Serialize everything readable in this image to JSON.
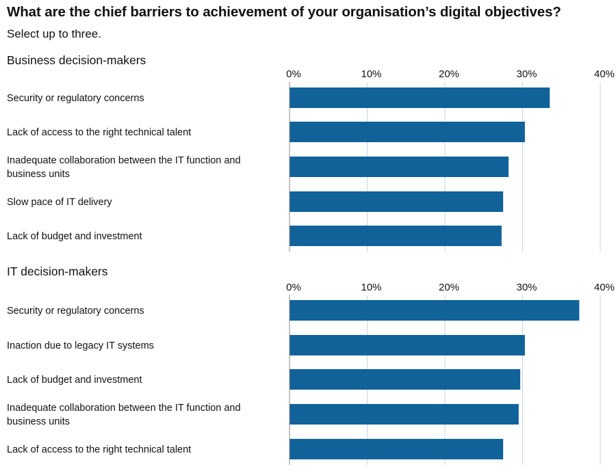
{
  "title": "What are the chief barriers to achievement of your organisation’s digital objectives?",
  "subtitle": "Select up to three.",
  "colors": {
    "bar": "#12629a",
    "grid": "#c9d4de",
    "axis": "#888888"
  },
  "chart_data": [
    {
      "type": "bar",
      "orientation": "horizontal",
      "title": "Business decision-makers",
      "categories": [
        "Security or regulatory concerns",
        "Lack of access to the right technical talent",
        "Inadequate collaboration between the IT function and business units",
        "Slow pace of IT delivery",
        "Lack of budget and investment"
      ],
      "category_lines": [
        [
          "Security or regulatory concerns"
        ],
        [
          "Lack of access to the right technical talent"
        ],
        [
          "Inadequate collaboration between the IT function and",
          "business units"
        ],
        [
          "Slow pace of IT delivery"
        ],
        [
          "Lack of budget and investment"
        ]
      ],
      "values": [
        33.5,
        30.3,
        28.2,
        27.5,
        27.3
      ],
      "xlim": [
        0,
        40
      ],
      "xticks": [
        "0%",
        "10%",
        "20%",
        "30%",
        "40%"
      ],
      "grid": true
    },
    {
      "type": "bar",
      "orientation": "horizontal",
      "title": "IT decision-makers",
      "categories": [
        "Security or regulatory concerns",
        "Inaction due to legacy IT systems",
        "Lack of budget and investment",
        "Inadequate collaboration between the IT function and business units",
        "Lack of access to the right technical talent"
      ],
      "category_lines": [
        [
          "Security or regulatory concerns"
        ],
        [
          "Inaction due to legacy IT systems"
        ],
        [
          "Lack of budget and investment"
        ],
        [
          "Inadequate collaboration between the IT function and",
          "business units"
        ],
        [
          "Lack of access to the right technical talent"
        ]
      ],
      "values": [
        37.3,
        30.3,
        29.7,
        29.5,
        27.5
      ],
      "xlim": [
        0,
        40
      ],
      "xticks": [
        "0%",
        "10%",
        "20%",
        "30%",
        "40%"
      ],
      "grid": true
    }
  ]
}
